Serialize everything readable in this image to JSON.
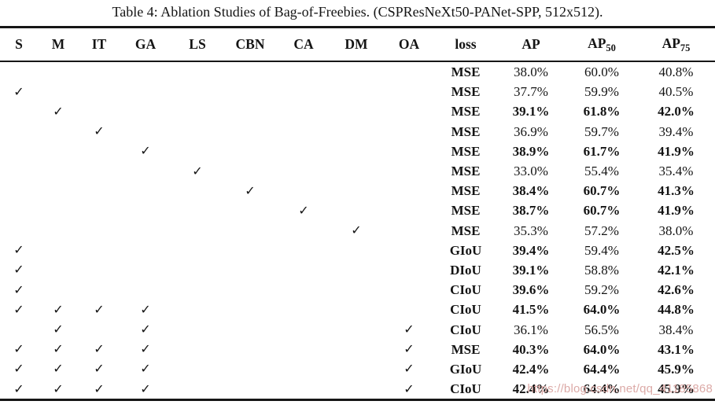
{
  "title": "Table 4: Ablation Studies of Bag-of-Freebies. (CSPResNeXt50-PANet-SPP, 512x512).",
  "watermark": "https://blog.csdn.net/qq_41185868",
  "table": {
    "check_icon": "✓",
    "flag_columns": [
      {
        "key": "S",
        "label": "S"
      },
      {
        "key": "M",
        "label": "M"
      },
      {
        "key": "IT",
        "label": "IT"
      },
      {
        "key": "GA",
        "label": "GA"
      },
      {
        "key": "LS",
        "label": "LS"
      },
      {
        "key": "CBN",
        "label": "CBN"
      },
      {
        "key": "CA",
        "label": "CA"
      },
      {
        "key": "DM",
        "label": "DM"
      },
      {
        "key": "OA",
        "label": "OA"
      }
    ],
    "value_columns": [
      {
        "key": "loss",
        "label": "loss",
        "sub": ""
      },
      {
        "key": "ap",
        "label": "AP",
        "sub": ""
      },
      {
        "key": "ap50",
        "label": "AP",
        "sub": "50"
      },
      {
        "key": "ap75",
        "label": "AP",
        "sub": "75"
      }
    ],
    "rows": [
      {
        "checks": [],
        "loss": "MSE",
        "ap": "38.0%",
        "ap50": "60.0%",
        "ap75": "40.8%",
        "bold": [
          false,
          false,
          false
        ]
      },
      {
        "checks": [
          "S"
        ],
        "loss": "MSE",
        "ap": "37.7%",
        "ap50": "59.9%",
        "ap75": "40.5%",
        "bold": [
          false,
          false,
          false
        ]
      },
      {
        "checks": [
          "M"
        ],
        "loss": "MSE",
        "ap": "39.1%",
        "ap50": "61.8%",
        "ap75": "42.0%",
        "bold": [
          true,
          true,
          true
        ]
      },
      {
        "checks": [
          "IT"
        ],
        "loss": "MSE",
        "ap": "36.9%",
        "ap50": "59.7%",
        "ap75": "39.4%",
        "bold": [
          false,
          false,
          false
        ]
      },
      {
        "checks": [
          "GA"
        ],
        "loss": "MSE",
        "ap": "38.9%",
        "ap50": "61.7%",
        "ap75": "41.9%",
        "bold": [
          true,
          true,
          true
        ]
      },
      {
        "checks": [
          "LS"
        ],
        "loss": "MSE",
        "ap": "33.0%",
        "ap50": "55.4%",
        "ap75": "35.4%",
        "bold": [
          false,
          false,
          false
        ]
      },
      {
        "checks": [
          "CBN"
        ],
        "loss": "MSE",
        "ap": "38.4%",
        "ap50": "60.7%",
        "ap75": "41.3%",
        "bold": [
          true,
          true,
          true
        ]
      },
      {
        "checks": [
          "CA"
        ],
        "loss": "MSE",
        "ap": "38.7%",
        "ap50": "60.7%",
        "ap75": "41.9%",
        "bold": [
          true,
          true,
          true
        ]
      },
      {
        "checks": [
          "DM"
        ],
        "loss": "MSE",
        "ap": "35.3%",
        "ap50": "57.2%",
        "ap75": "38.0%",
        "bold": [
          false,
          false,
          false
        ]
      },
      {
        "checks": [
          "S"
        ],
        "loss": "GIoU",
        "ap": "39.4%",
        "ap50": "59.4%",
        "ap75": "42.5%",
        "bold": [
          true,
          false,
          true
        ]
      },
      {
        "checks": [
          "S"
        ],
        "loss": "DIoU",
        "ap": "39.1%",
        "ap50": "58.8%",
        "ap75": "42.1%",
        "bold": [
          true,
          false,
          true
        ]
      },
      {
        "checks": [
          "S"
        ],
        "loss": "CIoU",
        "ap": "39.6%",
        "ap50": "59.2%",
        "ap75": "42.6%",
        "bold": [
          true,
          false,
          true
        ]
      },
      {
        "checks": [
          "S",
          "M",
          "IT",
          "GA"
        ],
        "loss": "CIoU",
        "ap": "41.5%",
        "ap50": "64.0%",
        "ap75": "44.8%",
        "bold": [
          true,
          true,
          true
        ]
      },
      {
        "checks": [
          "M",
          "GA",
          "OA"
        ],
        "loss": "CIoU",
        "ap": "36.1%",
        "ap50": "56.5%",
        "ap75": "38.4%",
        "bold": [
          false,
          false,
          false
        ]
      },
      {
        "checks": [
          "S",
          "M",
          "IT",
          "GA",
          "OA"
        ],
        "loss": "MSE",
        "ap": "40.3%",
        "ap50": "64.0%",
        "ap75": "43.1%",
        "bold": [
          true,
          true,
          true
        ]
      },
      {
        "checks": [
          "S",
          "M",
          "IT",
          "GA",
          "OA"
        ],
        "loss": "GIoU",
        "ap": "42.4%",
        "ap50": "64.4%",
        "ap75": "45.9%",
        "bold": [
          true,
          true,
          true
        ]
      },
      {
        "checks": [
          "S",
          "M",
          "IT",
          "GA",
          "OA"
        ],
        "loss": "CIoU",
        "ap": "42.4%",
        "ap50": "64.4%",
        "ap75": "45.9%",
        "bold": [
          true,
          true,
          true
        ]
      }
    ]
  }
}
